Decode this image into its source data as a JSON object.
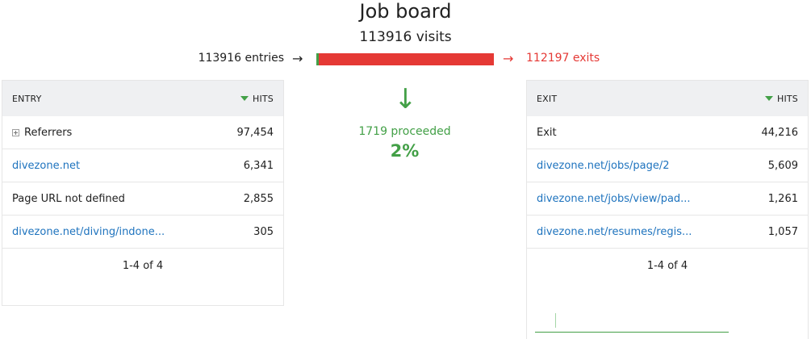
{
  "header": {
    "title": "Job board",
    "visits": "113916 visits"
  },
  "flow": {
    "entries_label": "113916 entries",
    "exits_label": "112197 exits",
    "proceeded_label": "1719 proceeded",
    "proceeded_percent": "2%",
    "proceed_fraction": 0.015,
    "colors": {
      "proceed": "#43a047",
      "exit": "#e53935"
    }
  },
  "entry_table": {
    "column_label": "ENTRY",
    "hits_label": "HITS",
    "rows": [
      {
        "label": "Referrers",
        "hits": "97,454"
      },
      {
        "label": "divezone.net",
        "hits": "6,341"
      },
      {
        "label": "Page URL not defined",
        "hits": "2,855"
      },
      {
        "label": "divezone.net/diving/indone...",
        "hits": "305"
      }
    ],
    "pager": "1-4 of 4"
  },
  "exit_table": {
    "column_label": "EXIT",
    "hits_label": "HITS",
    "rows": [
      {
        "label": "Exit",
        "hits": "44,216"
      },
      {
        "label": "divezone.net/jobs/page/2",
        "hits": "5,609"
      },
      {
        "label": "divezone.net/jobs/view/pad...",
        "hits": "1,261"
      },
      {
        "label": "divezone.net/resumes/regis...",
        "hits": "1,057"
      }
    ],
    "pager": "1-4 of 4"
  },
  "icons": {
    "right_arrow": "→",
    "down_arrow": "↓"
  }
}
